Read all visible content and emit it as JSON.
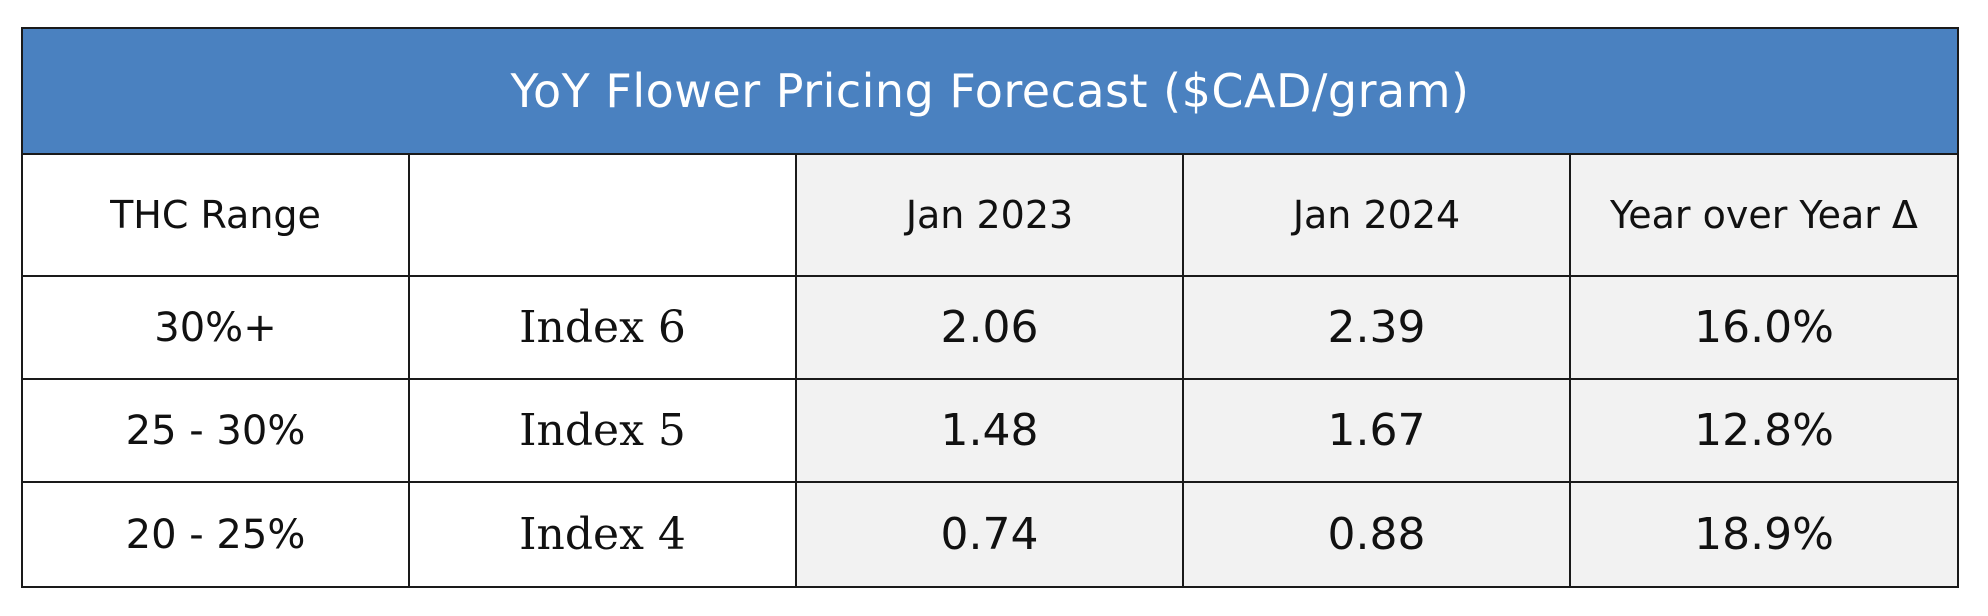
{
  "chart_data": {
    "type": "table",
    "title": "YoY Flower Pricing Forecast ($CAD/gram)",
    "columns": [
      "THC Range",
      "",
      "Jan 2023",
      "Jan 2024",
      "Year over Year Δ"
    ],
    "rows": [
      {
        "range": "30%+",
        "index": "Index 6",
        "jan2023": "2.06",
        "jan2024": "2.39",
        "yoy": "16.0%"
      },
      {
        "range": "25 - 30%",
        "index": "Index 5",
        "jan2023": "1.48",
        "jan2024": "1.67",
        "yoy": "12.8%"
      },
      {
        "range": "20 - 25%",
        "index": "Index 4",
        "jan2023": "0.74",
        "jan2024": "0.88",
        "yoy": "18.9%"
      }
    ]
  },
  "colors": {
    "title_bar": "#4a81c0",
    "shaded_cell": "#f2f2f2",
    "border": "#1a1a1a"
  }
}
